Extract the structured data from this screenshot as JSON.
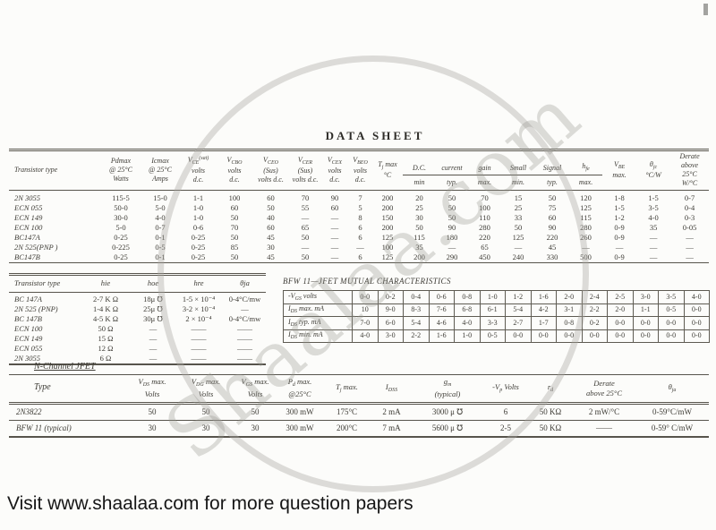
{
  "page": {
    "title": "DATA SHEET",
    "footer": "Visit www.shaalaa.com for more question papers",
    "watermark": {
      "text": "Shaalaa.com",
      "color": "#d9d8d5"
    }
  },
  "transistor_table": {
    "left_headers": [
      "Transistor type",
      "Pdmax<br>@ 25°C<br>Watts",
      "Icmax<br>@ 25°C<br>Amps",
      "V<sub>CE</sub><sup>(sat)</sup><br>volts<br>d.c.",
      "V<sub>CBO</sub><br>volts<br>d.c.",
      "V<sub>CEO</sub><br>(Sus)<br>volts d.c.",
      "V<sub>CER</sub><br>(Sus)<br>volts d.c.",
      "V<sub>CEX</sub><br>volts<br>d.c.",
      "V<sub>BEO</sub><br>volts<br>d.c.",
      "T<sub>j</sub> max<br>°C"
    ],
    "group_words": [
      "D.C.",
      "current",
      "gain",
      "Small",
      "Signal",
      "h<sub>fe</sub>"
    ],
    "group_subs": [
      "min",
      "typ.",
      "max.",
      "min.",
      "typ.",
      "max."
    ],
    "right_headers": [
      "V<sub>BE</sub><br>max.",
      "θ<sub>jc</sub><br>°C/W",
      "Derate<br>above<br>25°C<br>W/°C"
    ],
    "rows": [
      {
        "type": "2N 3055",
        "values": [
          "115-5",
          "15-0",
          "1-1",
          "100",
          "60",
          "70",
          "90",
          "7",
          "200",
          "20",
          "50",
          "70",
          "15",
          "50",
          "120",
          "1-8",
          "1-5",
          "0-7"
        ]
      },
      {
        "type": "ECN 055",
        "values": [
          "50-0",
          "5-0",
          "1-0",
          "60",
          "50",
          "55",
          "60",
          "5",
          "200",
          "25",
          "50",
          "100",
          "25",
          "75",
          "125",
          "1-5",
          "3-5",
          "0-4"
        ]
      },
      {
        "type": "ECN 149",
        "values": [
          "30-0",
          "4-0",
          "1-0",
          "50",
          "40",
          "—",
          "—",
          "8",
          "150",
          "30",
          "50",
          "110",
          "33",
          "60",
          "115",
          "1-2",
          "4-0",
          "0-3"
        ]
      },
      {
        "type": "ECN 100",
        "values": [
          "5-0",
          "0-7",
          "0-6",
          "70",
          "60",
          "65",
          "—",
          "6",
          "200",
          "50",
          "90",
          "280",
          "50",
          "90",
          "280",
          "0-9",
          "35",
          "0-05"
        ]
      },
      {
        "type": "BC147A",
        "values": [
          "0-25",
          "0-1",
          "0-25",
          "50",
          "45",
          "50",
          "—",
          "6",
          "125",
          "115",
          "180",
          "220",
          "125",
          "220",
          "260",
          "0-9",
          "—",
          "—"
        ]
      },
      {
        "type": "2N 525(PNP )",
        "values": [
          "0-225",
          "0-5",
          "0-25",
          "85",
          "30",
          "—",
          "—",
          "—",
          "100",
          "35",
          "—",
          "65",
          "—",
          "45",
          "—",
          "—",
          "—",
          "—"
        ]
      },
      {
        "type": "BC147B",
        "values": [
          "0-25",
          "0-1",
          "0-25",
          "50",
          "45",
          "50",
          "—",
          "6",
          "125",
          "200",
          "290",
          "450",
          "240",
          "330",
          "500",
          "0-9",
          "—",
          "—"
        ]
      }
    ]
  },
  "hparams_table": {
    "headers": [
      "Transistor type",
      "hie",
      "hoe",
      "hre",
      "θja"
    ],
    "rows": [
      [
        "BC 147A",
        "2-7 K Ω",
        "18μ ℧",
        "1-5 × 10⁻⁴",
        "0-4°C/mw"
      ],
      [
        "2N 525 (PNP)",
        "1-4 K Ω",
        "25μ ℧",
        "3-2 × 10⁻⁴",
        "—"
      ],
      [
        "BC 147B",
        "4-5 K Ω",
        "30μ ℧",
        "2 × 10⁻⁴",
        "0-4°C/mw"
      ],
      [
        "ECN 100",
        "50 Ω",
        "—",
        "——",
        "——"
      ],
      [
        "ECN 149",
        "15 Ω",
        "—",
        "——",
        "——"
      ],
      [
        "ECN 055",
        "12 Ω",
        "—",
        "——",
        "——"
      ],
      [
        "2N 3055",
        "6 Ω",
        "—",
        "——",
        "——"
      ]
    ]
  },
  "bfw_table": {
    "title": "BFW 11—JFET MUTUAL CHARACTERISTICS",
    "rows": [
      {
        "label": "-V<sub>GS</sub> volts",
        "values": [
          "0-0",
          "0-2",
          "0-4",
          "0-6",
          "0-8",
          "1-0",
          "1-2",
          "1-6",
          "2-0",
          "2-4",
          "2-5",
          "3-0",
          "3-5",
          "4-0"
        ]
      },
      {
        "label": "I<sub>DS</sub> max. mA",
        "values": [
          "10",
          "9-0",
          "8-3",
          "7-6",
          "6-8",
          "6-1",
          "5-4",
          "4-2",
          "3-1",
          "2-2",
          "2-0",
          "1-1",
          "0-5",
          "0-0"
        ]
      },
      {
        "label": "I<sub>DS</sub> typ. mA",
        "values": [
          "7-0",
          "6-0",
          "5-4",
          "4-6",
          "4-0",
          "3-3",
          "2-7",
          "1-7",
          "0-8",
          "0-2",
          "0-0",
          "0-0",
          "0-0",
          "0-0"
        ]
      },
      {
        "label": "I<sub>DS</sub> min. mA",
        "values": [
          "4-0",
          "3-0",
          "2-2",
          "1-6",
          "1-0",
          "0-5",
          "0-0",
          "0-0",
          "0-0",
          "0-0",
          "0-0",
          "0-0",
          "0-0",
          "0-0"
        ]
      }
    ]
  },
  "jfet_table": {
    "section_title": "N-Channel JFET",
    "headers": [
      "Type",
      "V<sub>DS</sub> max.<br>Volts",
      "V<sub>DG</sub> max.<br>Volts",
      "V<sub>GS</sub> max.<br>Volts",
      "P<sub>d</sub> max.<br>@25°C",
      "T<sub>j</sub> max.",
      "I<sub>DSS</sub>",
      "g<sub>m</sub><br>(typical)",
      "-V<sub>p</sub> Volts",
      "r<sub>d</sub>",
      "Derate<br>above 25°C",
      "θ<sub>ja</sub>"
    ],
    "rows": [
      [
        "2N3822",
        "50",
        "50",
        "50",
        "300 mW",
        "175°C",
        "2 mA",
        "3000 μ ℧",
        "6",
        "50 KΩ",
        "2 mW/°C",
        "0-59°C/mW"
      ],
      [
        "BFW 11 (typical)",
        "30",
        "30",
        "30",
        "300 mW",
        "200°C",
        "7 mA",
        "5600 μ ℧",
        "2-5",
        "50 KΩ",
        "——",
        "0-59° C/mW"
      ]
    ]
  }
}
